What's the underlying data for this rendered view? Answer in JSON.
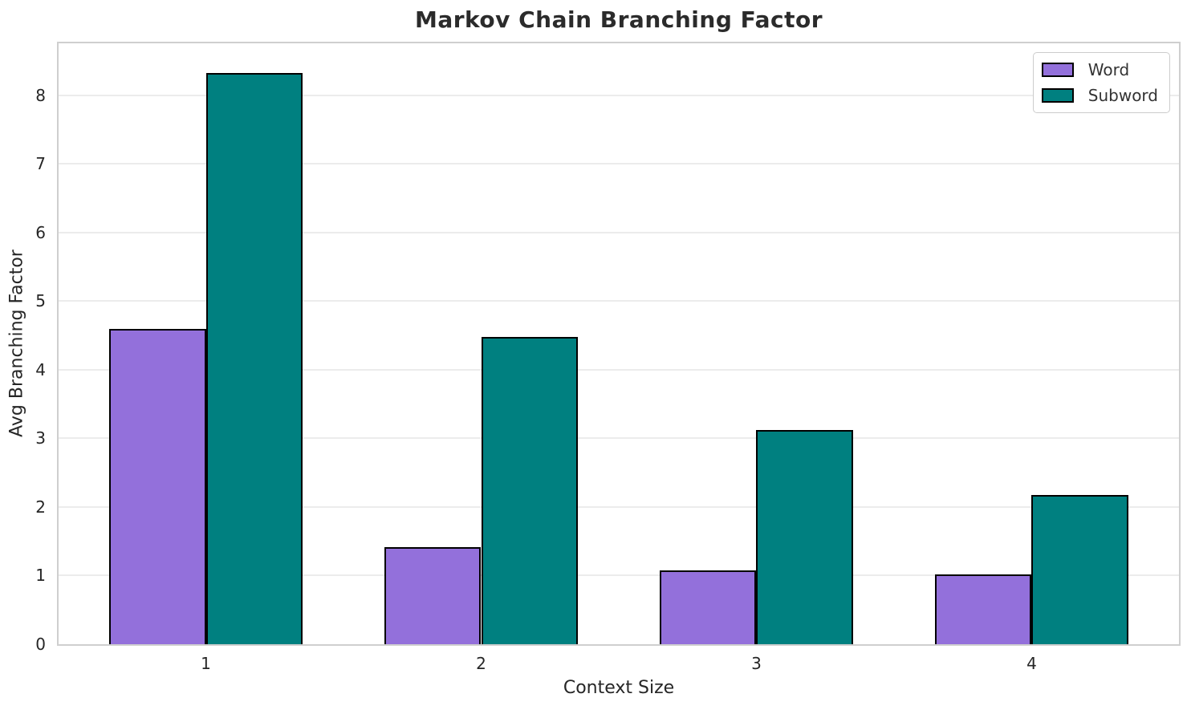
{
  "chart_data": {
    "type": "bar",
    "title": "Markov Chain Branching Factor",
    "xlabel": "Context Size",
    "ylabel": "Avg Branching Factor",
    "categories": [
      "1",
      "2",
      "3",
      "4"
    ],
    "series": [
      {
        "name": "Word",
        "color": "#9370DB",
        "values": [
          4.6,
          1.42,
          1.08,
          1.02
        ]
      },
      {
        "name": "Subword",
        "color": "#008080",
        "values": [
          8.33,
          4.48,
          3.12,
          2.18
        ]
      }
    ],
    "bar_edge_color": "#000000",
    "bar_width": 0.35,
    "xlim": [
      0.465,
      4.535
    ],
    "ylim": [
      0,
      8.76
    ],
    "yticks": [
      0,
      1,
      2,
      3,
      4,
      5,
      6,
      7,
      8
    ],
    "grid": true,
    "legend_position": "upper right",
    "colors": {
      "grid": "#ececec",
      "spine": "#cfcfcf",
      "text": "#262626",
      "background": "#ffffff"
    }
  }
}
